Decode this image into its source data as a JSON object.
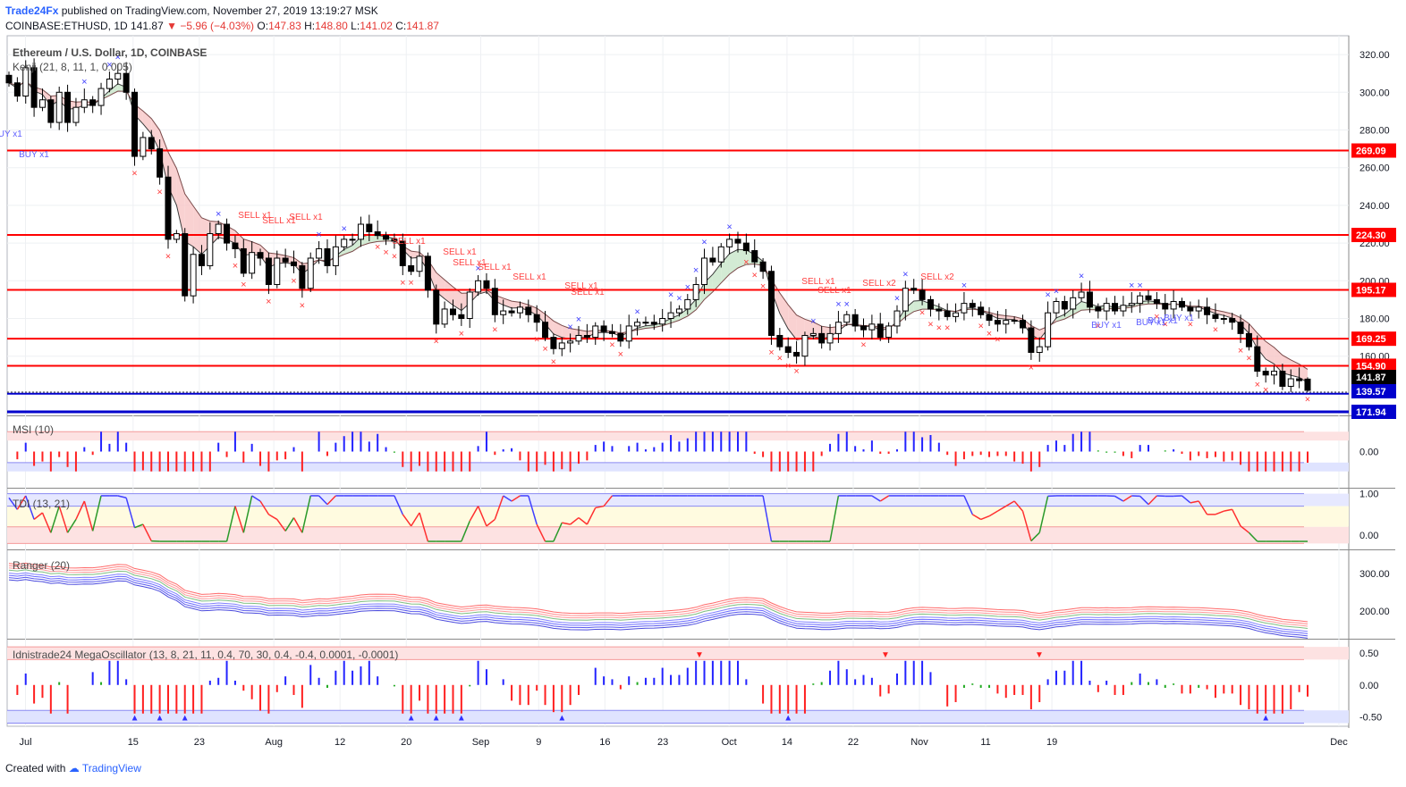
{
  "header": {
    "brand": "Trade24Fx",
    "published": "published on TradingView.com, November 27, 2019 13:19:27 MSK",
    "symbol_line": "COINBASE:ETHUSD, 1D",
    "last": "141.87",
    "change": "−5.96 (−4.03%)",
    "o_label": "O:",
    "o_value": "147.83",
    "h_label": "H:",
    "h_value": "148.80",
    "l_label": "L:",
    "l_value": "141.02",
    "c_label": "C:",
    "c_value": "141.87"
  },
  "footer": {
    "created_with": "Created with",
    "brand": "TradingView"
  },
  "colors": {
    "bull": "#ffffff",
    "bear": "#000000",
    "level": "#ff0000",
    "blue_level": "#0000cc",
    "buy_marker": "#3f3fff",
    "sell_marker": "#ff3b3b"
  },
  "chart_data": [
    {
      "type": "candlestick",
      "panel": "main",
      "title": "Ethereum / U.S. Dollar, 1D, COINBASE",
      "indicator_label": "Kenji (21, 8, 11, 1, 0.005)",
      "ylim": [
        130,
        330
      ],
      "y_ticks": [
        "320.00",
        "300.00",
        "280.00",
        "260.00",
        "240.00",
        "220.00",
        "200.00",
        "180.00",
        "160.00"
      ],
      "x_ticks": [
        "Jul",
        "15",
        "23",
        "Aug",
        "12",
        "20",
        "Sep",
        "9",
        "16",
        "23",
        "Oct",
        "14",
        "22",
        "Nov",
        "11",
        "19",
        "Dec"
      ],
      "price_labels": [
        "269.09",
        "224.30",
        "195.17",
        "169.25",
        "154.90",
        "141.87",
        "139.57",
        "171.94"
      ],
      "horizontal_levels": [
        269.09,
        224.3,
        195.17,
        169.25,
        154.9
      ],
      "blue_levels": [
        139.57
      ],
      "current_price": 141.87,
      "annotations": [
        "BUY x1",
        "BUY x1",
        "SELL x1",
        "SELL x1",
        "SELL x1",
        "SELL x1",
        "SELL x1",
        "SELL x1",
        "SELL x1",
        "SELL x1",
        "SELL x1",
        "SELL x1",
        "SELL x1",
        "SELL x1",
        "SELL x2",
        "SELL x2",
        "BUY x1",
        "BUY x1",
        "BUY x1",
        "BUY x1"
      ],
      "close": [
        305,
        298,
        313,
        292,
        296,
        284,
        300,
        284,
        292,
        296,
        293,
        302,
        307,
        310,
        300,
        266,
        276,
        270,
        255,
        222,
        225,
        192,
        214,
        208,
        225,
        230,
        220,
        217,
        204,
        215,
        212,
        198,
        212,
        210,
        208,
        196,
        212,
        217,
        208,
        218,
        222,
        222,
        230,
        226,
        224,
        222,
        221,
        208,
        205,
        213,
        195,
        177,
        185,
        182,
        180,
        194,
        200,
        196,
        182,
        184,
        183,
        186,
        182,
        178,
        170,
        164,
        167,
        168,
        171,
        170,
        176,
        173,
        172,
        168,
        176,
        178,
        178,
        177,
        180,
        183,
        185,
        190,
        198,
        212,
        210,
        218,
        222,
        220,
        216,
        210,
        205,
        171,
        165,
        162,
        160,
        171,
        172,
        167,
        172,
        178,
        182,
        176,
        174,
        177,
        170,
        176,
        184,
        196,
        195,
        190,
        185,
        184,
        181,
        183,
        188,
        186,
        182,
        179,
        177,
        179,
        179,
        175,
        162,
        165,
        183,
        189,
        185,
        191,
        194,
        186,
        184,
        188,
        184,
        187,
        188,
        192,
        190,
        188,
        185,
        189,
        186,
        184,
        186,
        182,
        180,
        180,
        178,
        172,
        165,
        152,
        150,
        152,
        144,
        148,
        147,
        141.87
      ],
      "ohlc_note": "OHLC of last bar: O 147.83, H 148.80, L 141.02, C 141.87"
    },
    {
      "type": "bar",
      "panel": "MSI",
      "label": "MSI (10)",
      "y_ticks": [
        "0.00"
      ],
      "ylim": [
        -0.8,
        0.8
      ]
    },
    {
      "type": "line",
      "panel": "TDI",
      "label": "TDI (13, 21)",
      "y_ticks": [
        "1.00",
        "0.00"
      ],
      "ylim": [
        -0.3,
        1.1
      ]
    },
    {
      "type": "line",
      "panel": "Ranger",
      "label": "Ranger (20)",
      "y_ticks": [
        "300.00",
        "200.00"
      ],
      "ylim": [
        130,
        360
      ]
    },
    {
      "type": "bar",
      "panel": "MegaOscillator",
      "label": "Idnistrade24 MegaOscillator (13, 8, 21, 11, 0.4, 70, 30, 0.4, -0.4, 0.0001, -0.0001)",
      "y_ticks": [
        "0.50",
        "0.00",
        "-0.50"
      ],
      "ylim": [
        -0.65,
        0.7
      ]
    }
  ]
}
